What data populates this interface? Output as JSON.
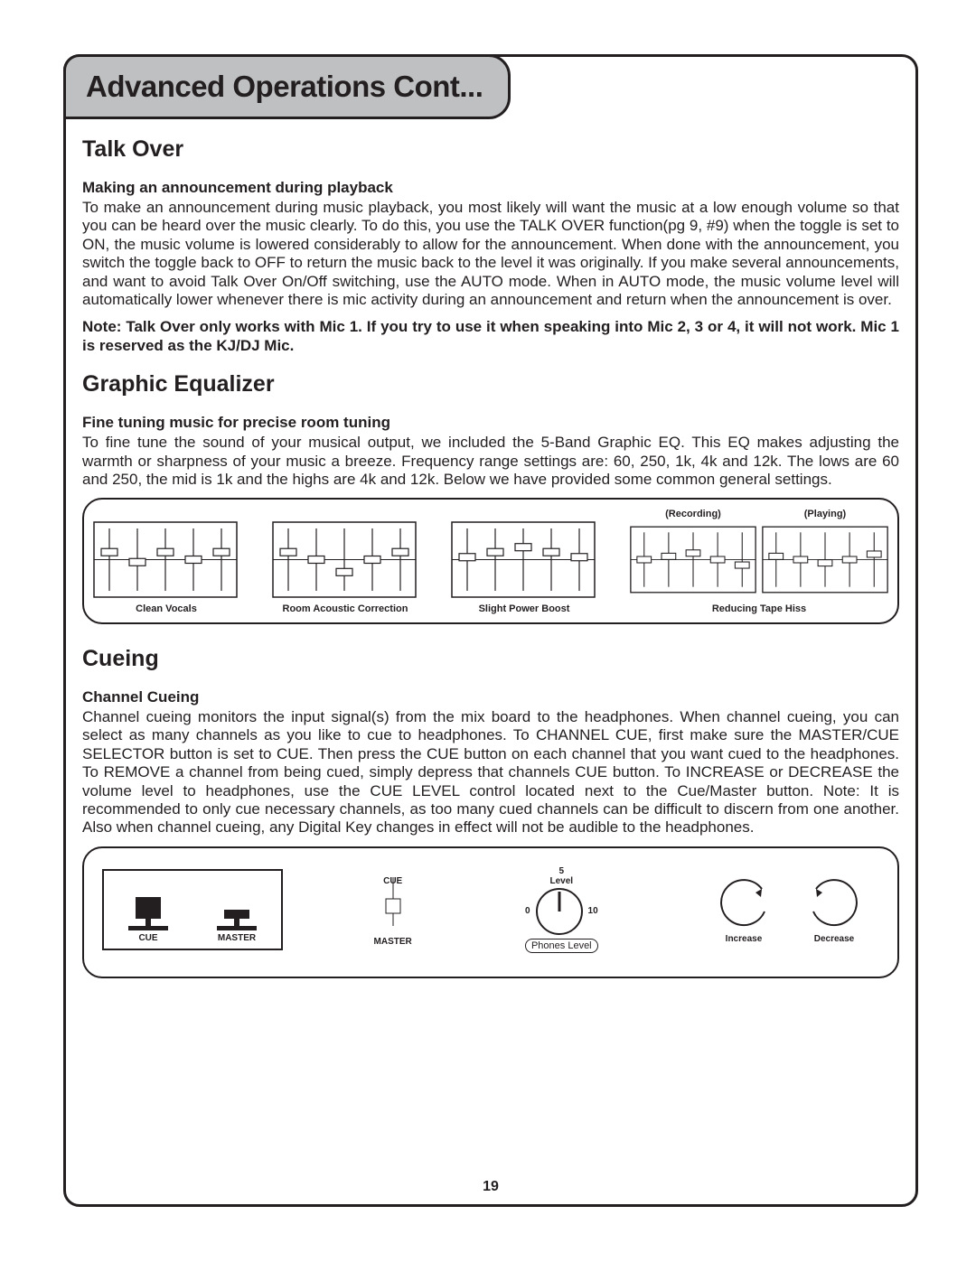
{
  "page": {
    "tab_title": "Advanced Operations Cont...",
    "page_number": "19"
  },
  "sections": {
    "talkover": {
      "heading": "Talk Over",
      "sub": "Making an announcement during playback",
      "body": "To make an announcement during music playback, you most likely will want the music at a low enough volume so that you can be heard over the music clearly. To do this, you use the TALK OVER function(pg 9, #9) when the toggle is set to ON, the music volume is lowered considerably to allow for the announcement. When done with the announcement, you switch the toggle back to OFF to return the music back to the level it was originally. If you make several announcements, and want to avoid Talk Over On/Off switching, use the AUTO mode. When in AUTO mode, the music volume level will automatically lower whenever there is mic activity during an announcement and return when the announcement is over.",
      "note": "Note: Talk Over only works with Mic 1. If you try to use it when speaking into Mic 2, 3 or 4, it will not work. Mic 1 is reserved as the KJ/DJ Mic."
    },
    "eq": {
      "heading": "Graphic Equalizer",
      "sub": "Fine tuning music for precise room tuning",
      "body": "To fine tune the sound of your musical output, we included the 5-Band Graphic EQ. This EQ makes adjusting the warmth or sharpness of your music a breeze. Frequency range settings are: 60, 250, 1k, 4k and 12k. The lows are 60 and 250, the mid is 1k and the highs are 4k and 12k. Below we have provided some common general settings.",
      "presets": [
        {
          "superlabel": "",
          "caption": "Clean Vocals",
          "positions": [
            0.38,
            0.54,
            0.38,
            0.5,
            0.38
          ]
        },
        {
          "superlabel": "",
          "caption": "Room Acoustic Correction",
          "positions": [
            0.38,
            0.5,
            0.7,
            0.5,
            0.38
          ]
        },
        {
          "superlabel": "",
          "caption": "Slight Power Boost",
          "positions": [
            0.46,
            0.38,
            0.3,
            0.38,
            0.46
          ]
        },
        {
          "superlabel": "(Recording)",
          "caption": "",
          "positions": [
            0.5,
            0.44,
            0.38,
            0.5,
            0.6
          ]
        },
        {
          "superlabel": "(Playing)",
          "caption": "",
          "positions": [
            0.44,
            0.5,
            0.56,
            0.5,
            0.4
          ]
        }
      ],
      "hiss_caption": "Reducing Tape Hiss"
    },
    "cue": {
      "heading": "Cueing",
      "sub": "Channel Cueing",
      "body": "Channel cueing monitors the input signal(s) from the mix board to the headphones. When channel cueing, you can select as many channels as you like to cue to headphones. To CHANNEL CUE, first make sure the MASTER/CUE SELECTOR button is set to CUE. Then press the CUE button on each channel that you want cued to the headphones. To REMOVE a channel from being cued, simply depress that channels CUE button. To INCREASE or DECREASE the volume level to headphones, use the CUE LEVEL control located next to the Cue/Master button. Note: It is recommended to only cue necessary channels, as too many cued channels can be difficult to discern from one another. Also when channel cueing, any Digital Key changes in effect will not be audible to the headphones.",
      "labels": {
        "cue": "CUE",
        "master": "MASTER",
        "level": "Level",
        "five": "5",
        "zero": "0",
        "ten": "10",
        "phones": "Phones Level",
        "increase": "Increase",
        "decrease": "Decrease"
      }
    }
  },
  "style": {
    "eq_box": {
      "width": 160,
      "height": 85,
      "stroke": "#231f20",
      "slider_knob_w": 18,
      "slider_knob_h": 8
    }
  }
}
